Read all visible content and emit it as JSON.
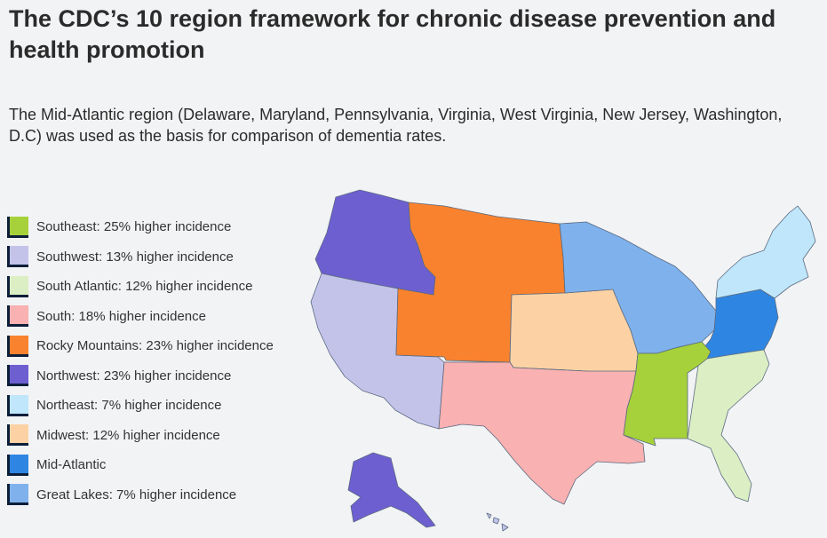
{
  "title": "The CDC’s 10 region framework for chronic disease prevention and health promotion",
  "subtitle": "The Mid-Atlantic region (Delaware, Maryland, Pennsylvania, Virginia, West Virginia, New Jersey, Washington, D.C) was used as the basis for comparison of dementia rates.",
  "legend": [
    {
      "label": "Southeast: 25% higher incidence",
      "color": "#a6d13a"
    },
    {
      "label": "Southwest: 13% higher incidence",
      "color": "#c3c3ea"
    },
    {
      "label": "South Atlantic: 12% higher incidence",
      "color": "#dceec4"
    },
    {
      "label": "South: 18% higher incidence",
      "color": "#f9b1b1"
    },
    {
      "label": "Rocky Mountains: 23% higher incidence",
      "color": "#f9822e"
    },
    {
      "label": "Northwest: 23% higher incidence",
      "color": "#6e5fd1"
    },
    {
      "label": "Northeast: 7% higher incidence",
      "color": "#bfe6fb"
    },
    {
      "label": "Midwest: 12% higher incidence",
      "color": "#fcd2a4"
    },
    {
      "label": "Mid-Atlantic",
      "color": "#2f86e2"
    },
    {
      "label": "Great Lakes: 7% higher incidence",
      "color": "#7fb2ec"
    }
  ]
}
